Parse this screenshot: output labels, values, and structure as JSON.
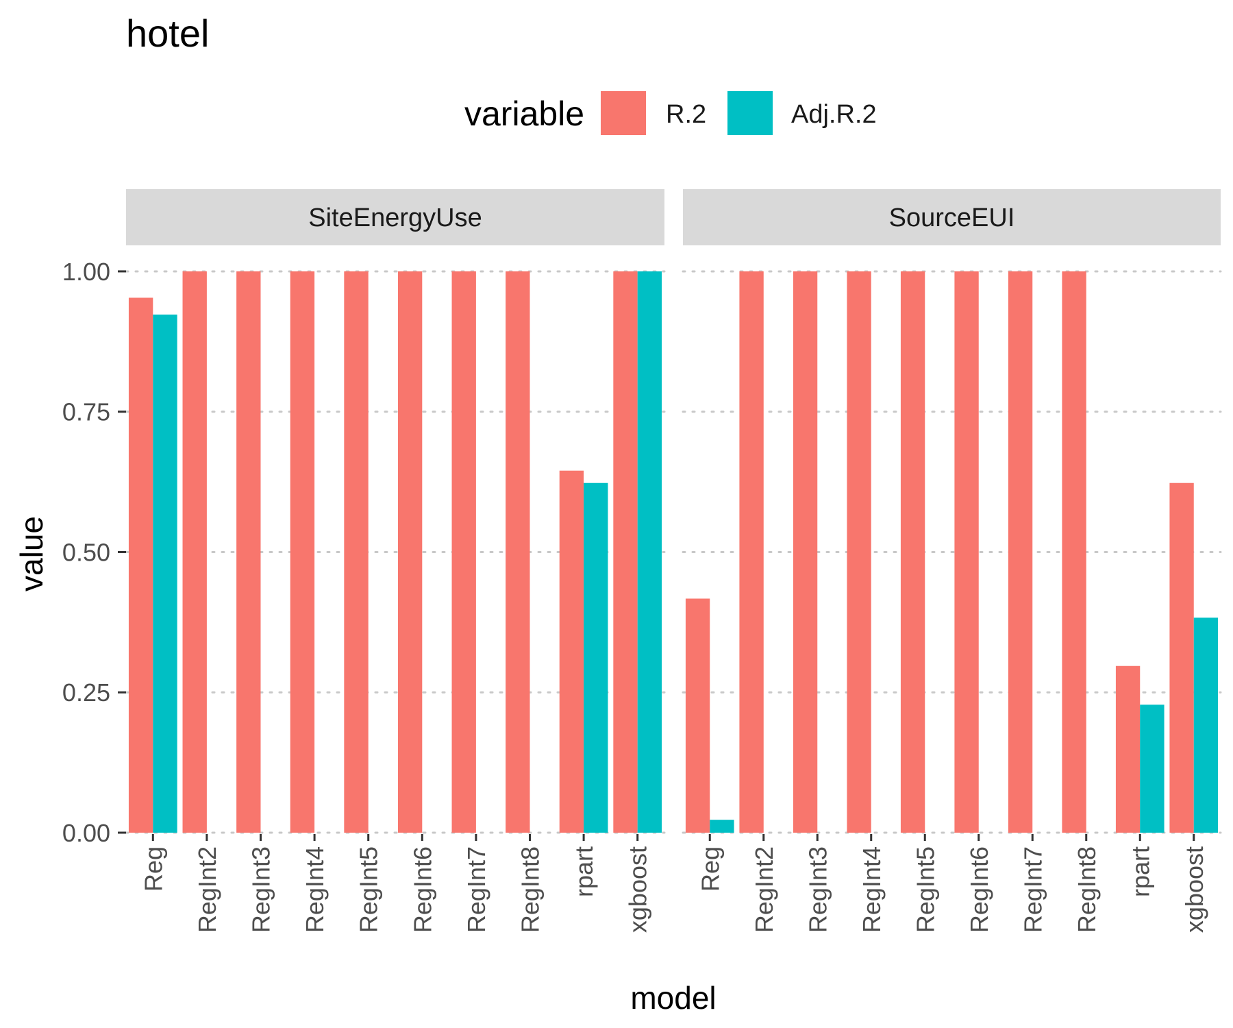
{
  "chart_data": {
    "type": "bar",
    "title": "hotel",
    "xlabel": "model",
    "ylabel": "value",
    "ylim": [
      0,
      1.05
    ],
    "yticks": [
      "0.00",
      "0.25",
      "0.50",
      "0.75",
      "1.00"
    ],
    "ytick_values": [
      0,
      0.25,
      0.5,
      0.75,
      1.0
    ],
    "grid": "horizontal dotted",
    "legend": {
      "title": "variable",
      "position": "top",
      "entries": [
        "R.2",
        "Adj.R.2"
      ]
    },
    "categories": [
      "Reg",
      "RegInt2",
      "RegInt3",
      "RegInt4",
      "RegInt5",
      "RegInt6",
      "RegInt7",
      "RegInt8",
      "rpart",
      "xgboost"
    ],
    "panels": [
      {
        "name": "SiteEnergyUse",
        "series": [
          {
            "name": "R.2",
            "color": "#F8766D",
            "values": [
              0.953,
              1.0,
              1.0,
              1.0,
              1.0,
              1.0,
              1.0,
              1.0,
              0.645,
              1.0
            ]
          },
          {
            "name": "Adj.R.2",
            "color": "#00BFC4",
            "values": [
              0.923,
              0,
              0,
              0,
              0,
              0,
              0,
              0,
              0.623,
              1.0
            ]
          }
        ]
      },
      {
        "name": "SourceEUI",
        "series": [
          {
            "name": "R.2",
            "color": "#F8766D",
            "values": [
              0.417,
              1.0,
              1.0,
              1.0,
              1.0,
              1.0,
              1.0,
              1.0,
              0.297,
              0.623
            ]
          },
          {
            "name": "Adj.R.2",
            "color": "#00BFC4",
            "values": [
              0.023,
              0,
              0,
              0,
              0,
              0,
              0,
              0,
              0.228,
              0.383
            ]
          }
        ]
      }
    ]
  }
}
